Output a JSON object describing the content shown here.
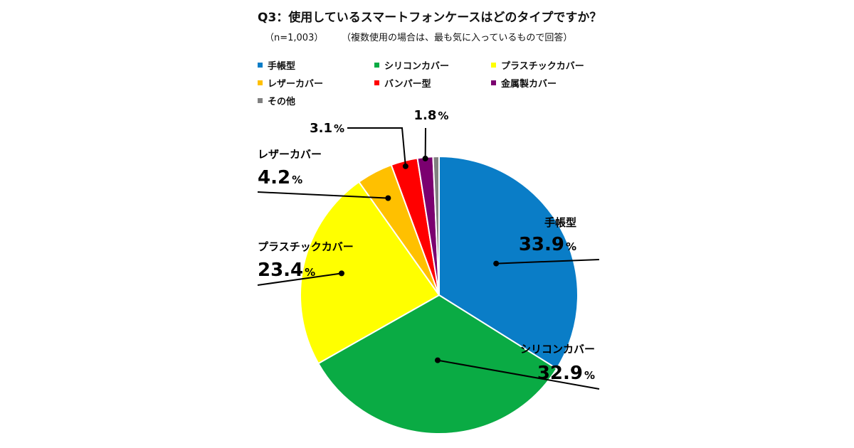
{
  "header": {
    "title": "Q3：使用しているスマートフォンケースはどのタイプですか？",
    "n_note": "（n=1,003）",
    "note": "（複数使用の場合は、最も気に入っているもので回答）"
  },
  "chart_data": {
    "type": "pie",
    "title": "Q3：使用しているスマートフォンケースはどのタイプですか？",
    "unit": "%",
    "legend_position": "top",
    "slices": [
      {
        "label": "手帳型",
        "value": 33.9,
        "color": "#0a7dc7",
        "display": "33.9"
      },
      {
        "label": "シリコンカバー",
        "value": 32.9,
        "color": "#0aab44",
        "display": "32.9"
      },
      {
        "label": "プラスチックカバー",
        "value": 23.4,
        "color": "#ffff00",
        "display": "23.4"
      },
      {
        "label": "レザーカバー",
        "value": 4.2,
        "color": "#ffc000",
        "display": "4.2"
      },
      {
        "label": "バンパー型",
        "value": 3.1,
        "color": "#ff0000",
        "display": "3.1"
      },
      {
        "label": "金属製カバー",
        "value": 1.8,
        "color": "#7b0070",
        "display": "1.8"
      },
      {
        "label": "その他",
        "value": 0.7,
        "color": "#808080",
        "display": ""
      }
    ]
  }
}
